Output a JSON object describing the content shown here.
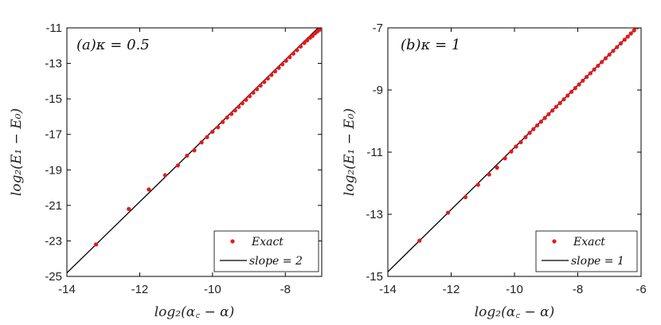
{
  "chart_data": [
    {
      "type": "scatter",
      "title": "(a)κ = 0.5",
      "xlabel": "log₂(α꜀ − α)",
      "ylabel": "log₂(E₁ − E₀)",
      "xlim": [
        -14,
        -7
      ],
      "ylim": [
        -25,
        -11
      ],
      "xticks": [
        "-14",
        "-12",
        "-10",
        "-8"
      ],
      "yticks": [
        "-11",
        "-13",
        "-15",
        "-17",
        "-19",
        "-21",
        "-23",
        "-25"
      ],
      "legend_position": "bottom-right",
      "series": [
        {
          "name": "Exact",
          "kind": "points",
          "color": "#e41a1c",
          "x": [
            -13.2,
            -12.3,
            -11.75,
            -11.3,
            -10.95,
            -10.7,
            -10.5,
            -10.3,
            -10.15,
            -10.0,
            -9.85,
            -9.72,
            -9.6,
            -9.48,
            -9.38,
            -9.28,
            -9.18,
            -9.08,
            -8.98,
            -8.88,
            -8.78,
            -8.68,
            -8.58,
            -8.48,
            -8.38,
            -8.28,
            -8.18,
            -8.08,
            -7.98,
            -7.88,
            -7.78,
            -7.68,
            -7.58,
            -7.48,
            -7.4,
            -7.32,
            -7.25,
            -7.18,
            -7.12,
            -7.06,
            -7.02
          ],
          "y": [
            -23.2,
            -21.2,
            -20.1,
            -19.3,
            -18.75,
            -18.2,
            -17.9,
            -17.45,
            -17.15,
            -16.85,
            -16.6,
            -16.3,
            -16.05,
            -15.85,
            -15.65,
            -15.45,
            -15.25,
            -15.05,
            -14.85,
            -14.65,
            -14.45,
            -14.25,
            -14.05,
            -13.85,
            -13.65,
            -13.45,
            -13.25,
            -13.05,
            -12.85,
            -12.65,
            -12.45,
            -12.25,
            -12.05,
            -11.85,
            -11.7,
            -11.55,
            -11.45,
            -11.3,
            -11.2,
            -11.1,
            -11.02
          ]
        },
        {
          "name": "slope = 2",
          "kind": "line",
          "color": "#000000",
          "x": [
            -14,
            -7
          ],
          "y": [
            -24.8,
            -10.8
          ]
        }
      ]
    },
    {
      "type": "scatter",
      "title": "(b)κ = 1",
      "xlabel": "log₂(α꜀ − α)",
      "ylabel": "log₂(E₁ − E₀)",
      "xlim": [
        -14,
        -6
      ],
      "ylim": [
        -15,
        -7
      ],
      "xticks": [
        "-14",
        "-12",
        "-10",
        "-8",
        "-6"
      ],
      "yticks": [
        "-7",
        "-9",
        "-11",
        "-13",
        "-15"
      ],
      "legend_position": "bottom-right",
      "series": [
        {
          "name": "Exact",
          "kind": "points",
          "color": "#e41a1c",
          "x": [
            -13.0,
            -12.1,
            -11.55,
            -11.15,
            -10.8,
            -10.55,
            -10.3,
            -10.1,
            -9.95,
            -9.8,
            -9.65,
            -9.52,
            -9.4,
            -9.28,
            -9.16,
            -9.04,
            -8.92,
            -8.8,
            -8.68,
            -8.56,
            -8.44,
            -8.32,
            -8.2,
            -8.08,
            -7.96,
            -7.84,
            -7.72,
            -7.6,
            -7.48,
            -7.36,
            -7.24,
            -7.12,
            -7.0,
            -6.88,
            -6.76,
            -6.64,
            -6.52,
            -6.42,
            -6.32,
            -6.22,
            -6.12,
            -6.04
          ],
          "y": [
            -13.85,
            -12.95,
            -12.45,
            -12.05,
            -11.72,
            -11.5,
            -11.2,
            -10.98,
            -10.82,
            -10.68,
            -10.52,
            -10.38,
            -10.26,
            -10.14,
            -10.02,
            -9.9,
            -9.78,
            -9.66,
            -9.54,
            -9.42,
            -9.3,
            -9.18,
            -9.06,
            -8.94,
            -8.82,
            -8.7,
            -8.58,
            -8.46,
            -8.34,
            -8.22,
            -8.1,
            -7.98,
            -7.86,
            -7.74,
            -7.62,
            -7.5,
            -7.38,
            -7.28,
            -7.18,
            -7.08,
            -6.98,
            -6.9
          ]
        },
        {
          "name": "slope = 1",
          "kind": "line",
          "color": "#000000",
          "x": [
            -14,
            -6
          ],
          "y": [
            -14.85,
            -6.85
          ]
        }
      ]
    }
  ]
}
